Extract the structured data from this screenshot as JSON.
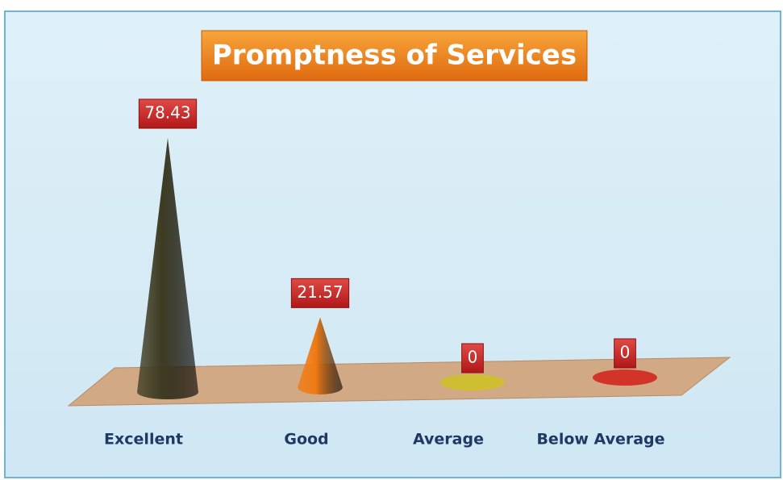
{
  "chart_data": {
    "type": "cone",
    "title": "Promptness of Services",
    "categories": [
      "Excellent",
      "Good",
      "Average",
      "Below Average"
    ],
    "values": [
      78.43,
      21.57,
      0,
      0
    ],
    "colors": [
      "#3e3b22",
      "#f07a12",
      "#cfc222",
      "#d2201a"
    ]
  }
}
